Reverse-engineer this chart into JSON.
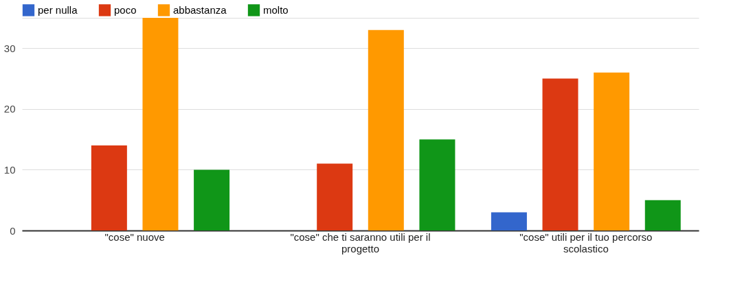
{
  "chart_data": {
    "type": "bar",
    "categories": [
      "\"cose\" nuove",
      "\"cose\" che ti saranno utili per il progetto",
      "\"cose\" utili per il tuo percorso scolastico"
    ],
    "series": [
      {
        "name": "per nulla",
        "color": "#3366cc",
        "values": [
          0,
          0,
          3
        ]
      },
      {
        "name": "poco",
        "color": "#dc3912",
        "values": [
          14,
          11,
          25
        ]
      },
      {
        "name": "abbastanza",
        "color": "#ff9900",
        "values": [
          35,
          33,
          26
        ]
      },
      {
        "name": "molto",
        "color": "#109618",
        "values": [
          10,
          15,
          5
        ]
      }
    ],
    "ylim": [
      0,
      35
    ],
    "yticks": [
      0,
      10,
      20,
      30,
      {
        "value": 35,
        "label": null
      }
    ],
    "grid": "y",
    "legend": "top left"
  }
}
